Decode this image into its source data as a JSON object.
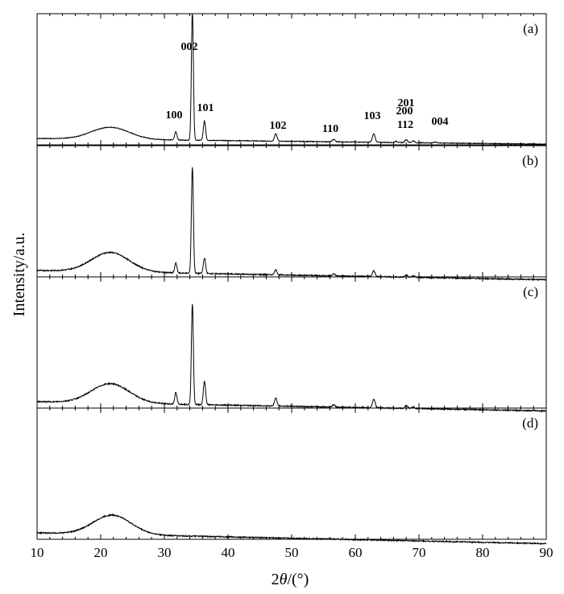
{
  "chart_data": {
    "type": "line",
    "xlabel": "2θ/(°)",
    "xlabel_prefix": "2",
    "xlabel_theta": "θ",
    "xlabel_suffix": "/(°)",
    "ylabel": "Intensity/a.u.",
    "xlim": [
      10,
      90
    ],
    "x_ticks": [
      10,
      20,
      30,
      40,
      50,
      60,
      70,
      80,
      90
    ],
    "x_tick_labels": [
      "10",
      "20",
      "30",
      "40",
      "50",
      "60",
      "70",
      "80",
      "90"
    ],
    "grid": false,
    "panels": [
      {
        "label": "(a)",
        "baseline": 0.06,
        "halo": {
          "center": 21.5,
          "width": 4.2,
          "height": 0.1
        },
        "background_slope": 0.0006,
        "peaks": [
          {
            "x": 31.8,
            "height": 0.07,
            "width": 0.25
          },
          {
            "x": 34.4,
            "height": 1.08,
            "width": 0.22
          },
          {
            "x": 36.3,
            "height": 0.16,
            "width": 0.25
          },
          {
            "x": 47.5,
            "height": 0.06,
            "width": 0.28
          },
          {
            "x": 56.6,
            "height": 0.02,
            "width": 0.3
          },
          {
            "x": 62.9,
            "height": 0.07,
            "width": 0.3
          },
          {
            "x": 66.4,
            "height": 0.01,
            "width": 0.3
          },
          {
            "x": 68.0,
            "height": 0.025,
            "width": 0.3
          },
          {
            "x": 69.1,
            "height": 0.015,
            "width": 0.3
          },
          {
            "x": 72.6,
            "height": 0.008,
            "width": 0.3
          }
        ],
        "ymax": 1.0
      },
      {
        "label": "(b)",
        "baseline": 0.06,
        "halo": {
          "center": 21.5,
          "width": 4.2,
          "height": 0.1
        },
        "background_slope": 0.0006,
        "peaks": [
          {
            "x": 31.8,
            "height": 0.05,
            "width": 0.25
          },
          {
            "x": 34.4,
            "height": 0.55,
            "width": 0.22
          },
          {
            "x": 36.3,
            "height": 0.08,
            "width": 0.25
          },
          {
            "x": 47.5,
            "height": 0.025,
            "width": 0.28
          },
          {
            "x": 56.6,
            "height": 0.01,
            "width": 0.3
          },
          {
            "x": 62.9,
            "height": 0.03,
            "width": 0.3
          },
          {
            "x": 68.0,
            "height": 0.012,
            "width": 0.3
          },
          {
            "x": 69.1,
            "height": 0.008,
            "width": 0.3
          }
        ],
        "ymax": 0.62
      },
      {
        "label": "(c)",
        "baseline": 0.06,
        "halo": {
          "center": 21.5,
          "width": 4.2,
          "height": 0.1
        },
        "background_slope": 0.0006,
        "peaks": [
          {
            "x": 31.8,
            "height": 0.06,
            "width": 0.25
          },
          {
            "x": 34.4,
            "height": 0.52,
            "width": 0.22
          },
          {
            "x": 36.3,
            "height": 0.12,
            "width": 0.25
          },
          {
            "x": 47.5,
            "height": 0.04,
            "width": 0.28
          },
          {
            "x": 56.6,
            "height": 0.012,
            "width": 0.3
          },
          {
            "x": 62.9,
            "height": 0.045,
            "width": 0.3
          },
          {
            "x": 68.0,
            "height": 0.015,
            "width": 0.3
          },
          {
            "x": 69.1,
            "height": 0.008,
            "width": 0.3
          }
        ],
        "ymax": 0.62
      },
      {
        "label": "(d)",
        "baseline": 0.06,
        "halo": {
          "center": 21.8,
          "width": 4.2,
          "height": 0.1
        },
        "background_slope": 0.0007,
        "peaks": [],
        "ymax": 0.62
      }
    ],
    "annotations": [
      {
        "text": "002",
        "x": 34.4
      },
      {
        "text": "100",
        "x": 31.3
      },
      {
        "text": "101",
        "x": 36.5
      },
      {
        "text": "102",
        "x": 47.5
      },
      {
        "text": "110",
        "x": 56.5
      },
      {
        "text": "103",
        "x": 62.8
      },
      {
        "text": "201",
        "x": 68.3
      },
      {
        "text": "200",
        "x": 68.1
      },
      {
        "text": "112",
        "x": 68.2
      },
      {
        "text": "004",
        "x": 72.7
      }
    ]
  },
  "colors": {
    "line": "#000000",
    "axis": "#000000",
    "background": "#ffffff"
  }
}
